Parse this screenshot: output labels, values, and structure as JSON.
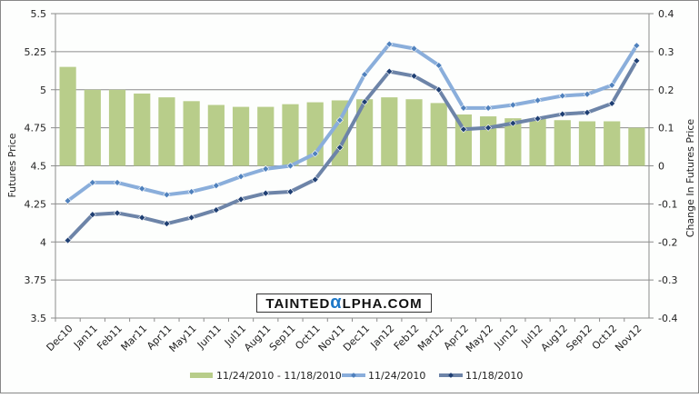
{
  "chart_data": {
    "type": "bar+line",
    "categories": [
      "Dec10",
      "Jan11",
      "Feb11",
      "Mar11",
      "Apr11",
      "May11",
      "Jun11",
      "Jul11",
      "Aug11",
      "Sep11",
      "Oct11",
      "Nov11",
      "Dec11",
      "Jan12",
      "Feb12",
      "Mar12",
      "Apr12",
      "May12",
      "Jun12",
      "Jul12",
      "Aug12",
      "Sep12",
      "Oct12",
      "Nov12"
    ],
    "series": [
      {
        "name": "11/24/2010  - 11/18/2010",
        "type": "bar",
        "axis": "right",
        "color": "#b8cd8a",
        "values": [
          0.26,
          0.2,
          0.2,
          0.19,
          0.18,
          0.17,
          0.16,
          0.155,
          0.155,
          0.162,
          0.167,
          0.172,
          0.175,
          0.18,
          0.175,
          0.165,
          0.135,
          0.13,
          0.125,
          0.123,
          0.12,
          0.117,
          0.117,
          0.1
        ]
      },
      {
        "name": "11/24/2010",
        "type": "line",
        "axis": "left",
        "color": "#8aaedb",
        "marker": "#4f81bd",
        "values": [
          4.27,
          4.39,
          4.39,
          4.35,
          4.31,
          4.33,
          4.37,
          4.43,
          4.48,
          4.5,
          4.58,
          4.8,
          5.1,
          5.3,
          5.27,
          5.16,
          4.88,
          4.88,
          4.9,
          4.93,
          4.96,
          4.97,
          5.03,
          5.29
        ]
      },
      {
        "name": "11/18/2010",
        "type": "line",
        "axis": "left",
        "color": "#6d84a8",
        "marker": "#1f3f73",
        "values": [
          4.01,
          4.18,
          4.19,
          4.16,
          4.12,
          4.16,
          4.21,
          4.28,
          4.32,
          4.33,
          4.41,
          4.62,
          4.92,
          5.12,
          5.09,
          5.0,
          4.74,
          4.75,
          4.78,
          4.81,
          4.84,
          4.85,
          4.91,
          5.19
        ]
      }
    ],
    "ylabel": "Futures Price",
    "y2label": "Change In Futures Price",
    "ylim": [
      3.5,
      5.5
    ],
    "y2lim": [
      -0.4,
      0.4
    ],
    "yticks": [
      "3.5",
      "3.75",
      "4",
      "4.25",
      "4.5",
      "4.75",
      "5",
      "5.25",
      "5.5"
    ],
    "y2ticks": [
      "-0.4",
      "-0.3",
      "-0.2",
      "-0.1",
      "0",
      "0.1",
      "0.2",
      "0.3",
      "0.4"
    ],
    "grid": true,
    "legend": "bottom"
  },
  "watermark": "TAINTEDαLPHA.COM"
}
